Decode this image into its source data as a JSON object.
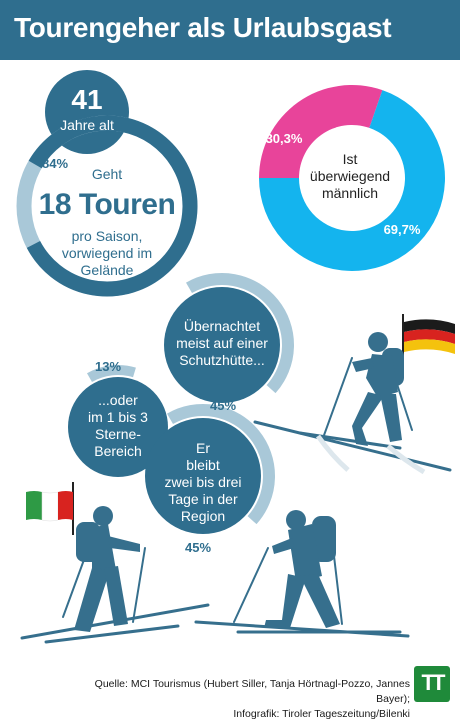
{
  "header": {
    "title": "Tourengeher als Urlaubsgast"
  },
  "age": {
    "value": "41",
    "label": "Jahre alt"
  },
  "tours": {
    "percent_label": "84%",
    "line1": "Geht",
    "big": "18 Touren",
    "line2": "pro Saison,",
    "line3": "vorwiegend im",
    "line4": "Gelände"
  },
  "gender": {
    "center_line1": "Ist",
    "center_line2": "überwiegend",
    "center_line3": "männlich"
  },
  "hut": {
    "line1": "Übernachtet",
    "line2": "meist auf einer",
    "line3": "Schutzhütte...",
    "percent_label": "45%"
  },
  "hotel": {
    "line1": "...oder",
    "line2": "im 1 bis 3",
    "line3": "Sterne-",
    "line4": "Bereich",
    "percent_label": "13%"
  },
  "stay": {
    "line1": "Er",
    "line2": "bleibt",
    "line3": "zwei bis drei",
    "line4": "Tage in der",
    "line5": "Region",
    "percent_label": "45%"
  },
  "footer": {
    "line1": "Quelle: MCI Tourismus (Hubert Siller, Tanja Hörtnagl-Pozzo, Jannes Bayer);",
    "line2": "Infografik: Tiroler Tageszeitung/Bilenki"
  },
  "logo": {
    "text": "TT"
  },
  "colors": {
    "header": "#2f6e8e",
    "dark_blue": "#2f6e8e",
    "light_blue_ring": "#a9c8d8",
    "cyan": "#14b4ee",
    "magenta": "#e8449a",
    "silhouette": "#366f8d"
  },
  "chart_data": [
    {
      "type": "pie",
      "labels": [
        "30,3%",
        "69,7%"
      ],
      "values": [
        30.3,
        69.7
      ],
      "colors": [
        "#e8449a",
        "#14b4ee"
      ]
    },
    {
      "type": "ring",
      "label": "84%",
      "value": 84
    },
    {
      "type": "ring",
      "label": "45%",
      "value": 45
    },
    {
      "type": "ring",
      "label": "13%",
      "value": 13
    },
    {
      "type": "ring",
      "label": "45%",
      "value": 45
    }
  ]
}
